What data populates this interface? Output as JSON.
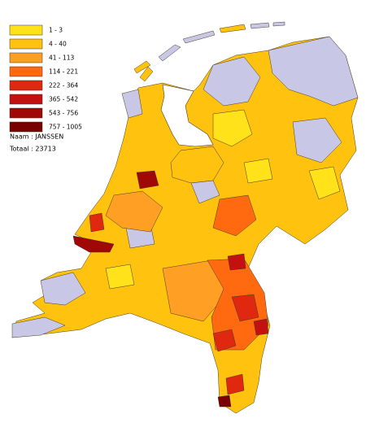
{
  "legend": {
    "items": [
      {
        "label": "1 - 3",
        "color": "#ffe21a"
      },
      {
        "label": "4 - 40",
        "color": "#ffc20e"
      },
      {
        "label": "41 - 113",
        "color": "#ffa024"
      },
      {
        "label": "114 - 221",
        "color": "#ff6a10"
      },
      {
        "label": "222 - 364",
        "color": "#e02810"
      },
      {
        "label": "365 - 542",
        "color": "#c41010"
      },
      {
        "label": "543 - 756",
        "color": "#a00808"
      },
      {
        "label": "757 - 1005",
        "color": "#7a0000"
      }
    ]
  },
  "info": {
    "name": "Naam : JANSSEN",
    "total": "Totaal : 23713"
  }
}
